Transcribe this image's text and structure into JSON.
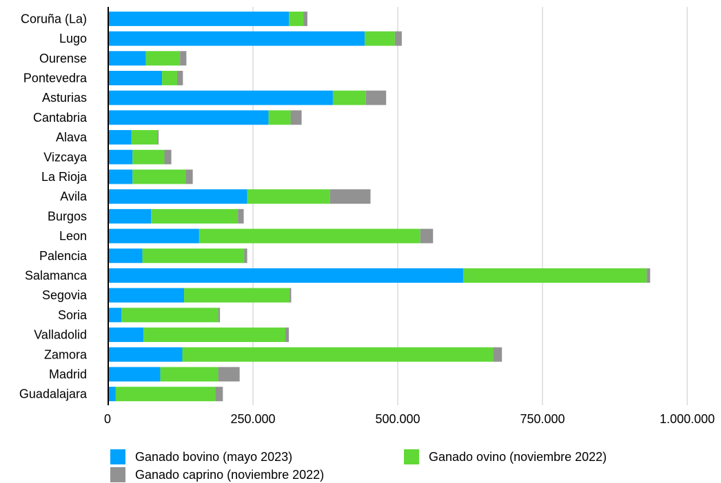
{
  "chart_data": {
    "type": "bar",
    "orientation": "horizontal",
    "stacked": true,
    "categories": [
      "Coruña (La)",
      "Lugo",
      "Ourense",
      "Pontevedra",
      "Asturias",
      "Cantabria",
      "Alava",
      "Vizcaya",
      "La Rioja",
      "Avila",
      "Burgos",
      "Leon",
      "Palencia",
      "Salamanca",
      "Segovia",
      "Soria",
      "Valladolid",
      "Zamora",
      "Madrid",
      "Guadalajara"
    ],
    "series": [
      {
        "name": "Ganado bovino (mayo 2023)",
        "color": "#00a2ff",
        "values": [
          312000,
          443000,
          65000,
          93000,
          388000,
          277000,
          40000,
          42000,
          42000,
          240000,
          74000,
          157000,
          59000,
          613000,
          131000,
          23000,
          61000,
          128000,
          90000,
          13000
        ]
      },
      {
        "name": "Ganado ovino (noviembre 2022)",
        "color": "#61d836",
        "values": [
          25000,
          52000,
          59000,
          26000,
          57000,
          38000,
          45000,
          55000,
          92000,
          143000,
          150000,
          382000,
          176000,
          317000,
          182000,
          167000,
          245000,
          537000,
          100000,
          172000
        ]
      },
      {
        "name": "Ganado caprino (noviembre 2022)",
        "color": "#929292",
        "values": [
          7000,
          12000,
          11000,
          10000,
          35000,
          19000,
          2000,
          12000,
          12000,
          70000,
          10000,
          22000,
          5000,
          6000,
          3000,
          3000,
          6000,
          15000,
          37000,
          13000
        ]
      }
    ],
    "xlim": [
      0,
      1000000
    ],
    "xticks": [
      0,
      250000,
      500000,
      750000,
      1000000
    ],
    "xtick_labels": [
      "0",
      "250.000",
      "500.000",
      "750.000",
      "1.000.000"
    ],
    "grid": "vertical",
    "legend_position": "bottom",
    "title": "",
    "xlabel": "",
    "ylabel": ""
  }
}
